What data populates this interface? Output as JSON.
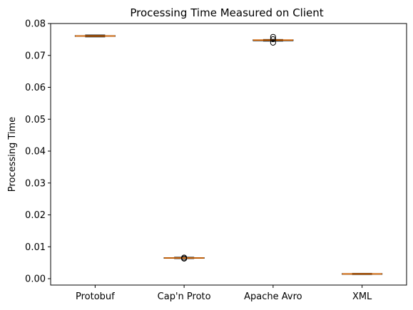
{
  "chart_data": {
    "type": "box",
    "title": "Processing Time Measured on Client",
    "xlabel": "",
    "ylabel": "Processing Time",
    "ylim": [
      -0.002,
      0.08
    ],
    "yticks": [
      "0.00",
      "0.01",
      "0.02",
      "0.03",
      "0.04",
      "0.05",
      "0.06",
      "0.07",
      "0.08"
    ],
    "categories": [
      "Protobuf",
      "Cap'n Proto",
      "Apache Avro",
      "XML"
    ],
    "boxes": [
      {
        "category": "Protobuf",
        "whisker_low": 0.0758,
        "q1": 0.076,
        "median": 0.0761,
        "q3": 0.0762,
        "whisker_high": 0.0764,
        "outliers": []
      },
      {
        "category": "Cap'n Proto",
        "whisker_low": 0.0063,
        "q1": 0.0064,
        "median": 0.0065,
        "q3": 0.0066,
        "whisker_high": 0.0067,
        "outliers": [
          0.0063,
          0.0066
        ]
      },
      {
        "category": "Apache Avro",
        "whisker_low": 0.0745,
        "q1": 0.0746,
        "median": 0.0748,
        "q3": 0.0749,
        "whisker_high": 0.075,
        "outliers": [
          0.074,
          0.0751,
          0.0758
        ]
      },
      {
        "category": "XML",
        "whisker_low": 0.0013,
        "q1": 0.0014,
        "median": 0.0015,
        "q3": 0.0016,
        "whisker_high": 0.0017,
        "outliers": []
      }
    ],
    "colors": {
      "box": "#000000",
      "median": "#ff7f0e",
      "outlier": "#000000"
    },
    "grid": false,
    "legend": "none"
  }
}
